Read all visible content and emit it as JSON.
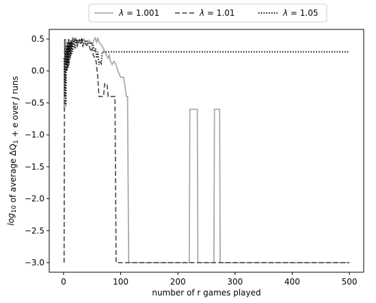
{
  "chart_data": {
    "type": "line",
    "title": "",
    "xlabel": "number of r games played",
    "ylabel": "log10 of average ΔQ1 + e over J runs",
    "xlim": [
      -25,
      525
    ],
    "ylim": [
      -3.15,
      0.65
    ],
    "x_ticks": [
      0,
      100,
      200,
      300,
      400,
      500
    ],
    "y_ticks": [
      0.5,
      0.0,
      -0.5,
      -1.0,
      -1.5,
      -2.0,
      -2.5,
      -3.0
    ],
    "x_tick_labels": [
      "0",
      "100",
      "200",
      "300",
      "400",
      "500"
    ],
    "y_tick_labels": [
      "0.5",
      "0.0",
      "−0.5",
      "−1.0",
      "−1.5",
      "−2.0",
      "−2.5",
      "−3.0"
    ],
    "grid": false,
    "legend_position": "top-center, above plot",
    "series": [
      {
        "name": "λ = 1.001",
        "color": "#a9a9a9",
        "dash": "solid",
        "points": [
          [
            1,
            -0.6
          ],
          [
            2,
            0.1
          ],
          [
            3,
            0.3
          ],
          [
            4,
            0.5
          ],
          [
            5,
            0.2
          ],
          [
            6,
            0.4
          ],
          [
            7,
            0.25
          ],
          [
            8,
            0.35
          ],
          [
            9,
            0.2
          ],
          [
            10,
            0.4
          ],
          [
            12,
            0.3
          ],
          [
            14,
            0.45
          ],
          [
            16,
            0.4
          ],
          [
            18,
            0.5
          ],
          [
            20,
            0.45
          ],
          [
            22,
            0.5
          ],
          [
            25,
            0.42
          ],
          [
            28,
            0.48
          ],
          [
            32,
            0.45
          ],
          [
            36,
            0.5
          ],
          [
            40,
            0.42
          ],
          [
            45,
            0.48
          ],
          [
            50,
            0.4
          ],
          [
            52,
            0.45
          ],
          [
            55,
            0.52
          ],
          [
            58,
            0.45
          ],
          [
            60,
            0.52
          ],
          [
            62,
            0.45
          ],
          [
            65,
            0.42
          ],
          [
            70,
            0.35
          ],
          [
            72,
            0.3
          ],
          [
            75,
            0.25
          ],
          [
            78,
            0.2
          ],
          [
            80,
            0.25
          ],
          [
            82,
            0.15
          ],
          [
            85,
            0.1
          ],
          [
            88,
            0.15
          ],
          [
            92,
            0.1
          ],
          [
            95,
            0.0
          ],
          [
            100,
            -0.1
          ],
          [
            105,
            -0.1
          ],
          [
            107,
            -0.2
          ],
          [
            110,
            -0.4
          ],
          [
            112,
            -0.4
          ],
          [
            114,
            -3.0
          ],
          [
            220,
            -3.0
          ],
          [
            221,
            -0.6
          ],
          [
            234,
            -0.6
          ],
          [
            235,
            -3.0
          ],
          [
            263,
            -3.0
          ],
          [
            264,
            -0.6
          ],
          [
            273,
            -0.6
          ],
          [
            274,
            -3.0
          ],
          [
            500,
            -3.0
          ]
        ]
      },
      {
        "name": "λ = 1.01",
        "color": "#555555",
        "dash": "dashed",
        "points": [
          [
            1,
            -3.0
          ],
          [
            2,
            0.5
          ],
          [
            3,
            -0.2
          ],
          [
            4,
            0.3
          ],
          [
            5,
            0.1
          ],
          [
            6,
            0.35
          ],
          [
            7,
            0.15
          ],
          [
            8,
            0.4
          ],
          [
            10,
            0.3
          ],
          [
            12,
            0.45
          ],
          [
            14,
            0.4
          ],
          [
            16,
            0.5
          ],
          [
            18,
            0.45
          ],
          [
            20,
            0.5
          ],
          [
            22,
            0.44
          ],
          [
            25,
            0.48
          ],
          [
            28,
            0.45
          ],
          [
            32,
            0.5
          ],
          [
            36,
            0.45
          ],
          [
            40,
            0.4
          ],
          [
            44,
            0.42
          ],
          [
            48,
            0.3
          ],
          [
            50,
            0.35
          ],
          [
            52,
            0.25
          ],
          [
            55,
            0.2
          ],
          [
            57,
            0.15
          ],
          [
            60,
            -0.1
          ],
          [
            62,
            -0.4
          ],
          [
            70,
            -0.4
          ],
          [
            72,
            -0.2
          ],
          [
            76,
            -0.2
          ],
          [
            78,
            -0.4
          ],
          [
            90,
            -0.4
          ],
          [
            92,
            -3.0
          ],
          [
            500,
            -3.0
          ]
        ]
      },
      {
        "name": "λ = 1.05",
        "color": "#111111",
        "dash": "dotted",
        "points": [
          [
            1,
            0.2
          ],
          [
            2,
            -0.4
          ],
          [
            3,
            0.35
          ],
          [
            4,
            -0.55
          ],
          [
            5,
            0.4
          ],
          [
            6,
            0.0
          ],
          [
            7,
            0.45
          ],
          [
            8,
            0.05
          ],
          [
            9,
            0.5
          ],
          [
            10,
            0.1
          ],
          [
            11,
            0.45
          ],
          [
            12,
            0.2
          ],
          [
            13,
            0.48
          ],
          [
            14,
            0.25
          ],
          [
            15,
            0.45
          ],
          [
            16,
            0.3
          ],
          [
            18,
            0.48
          ],
          [
            20,
            0.35
          ],
          [
            22,
            0.5
          ],
          [
            24,
            0.4
          ],
          [
            26,
            0.45
          ],
          [
            28,
            0.48
          ],
          [
            30,
            0.42
          ],
          [
            32,
            0.48
          ],
          [
            34,
            0.4
          ],
          [
            36,
            0.45
          ],
          [
            40,
            0.48
          ],
          [
            44,
            0.42
          ],
          [
            48,
            0.45
          ],
          [
            52,
            0.4
          ],
          [
            54,
            0.3
          ],
          [
            56,
            0.35
          ],
          [
            58,
            0.2
          ],
          [
            60,
            0.3
          ],
          [
            62,
            0.1
          ],
          [
            64,
            0.15
          ],
          [
            66,
            0.12
          ],
          [
            68,
            0.3
          ],
          [
            70,
            0.3
          ],
          [
            500,
            0.3
          ]
        ]
      }
    ]
  }
}
